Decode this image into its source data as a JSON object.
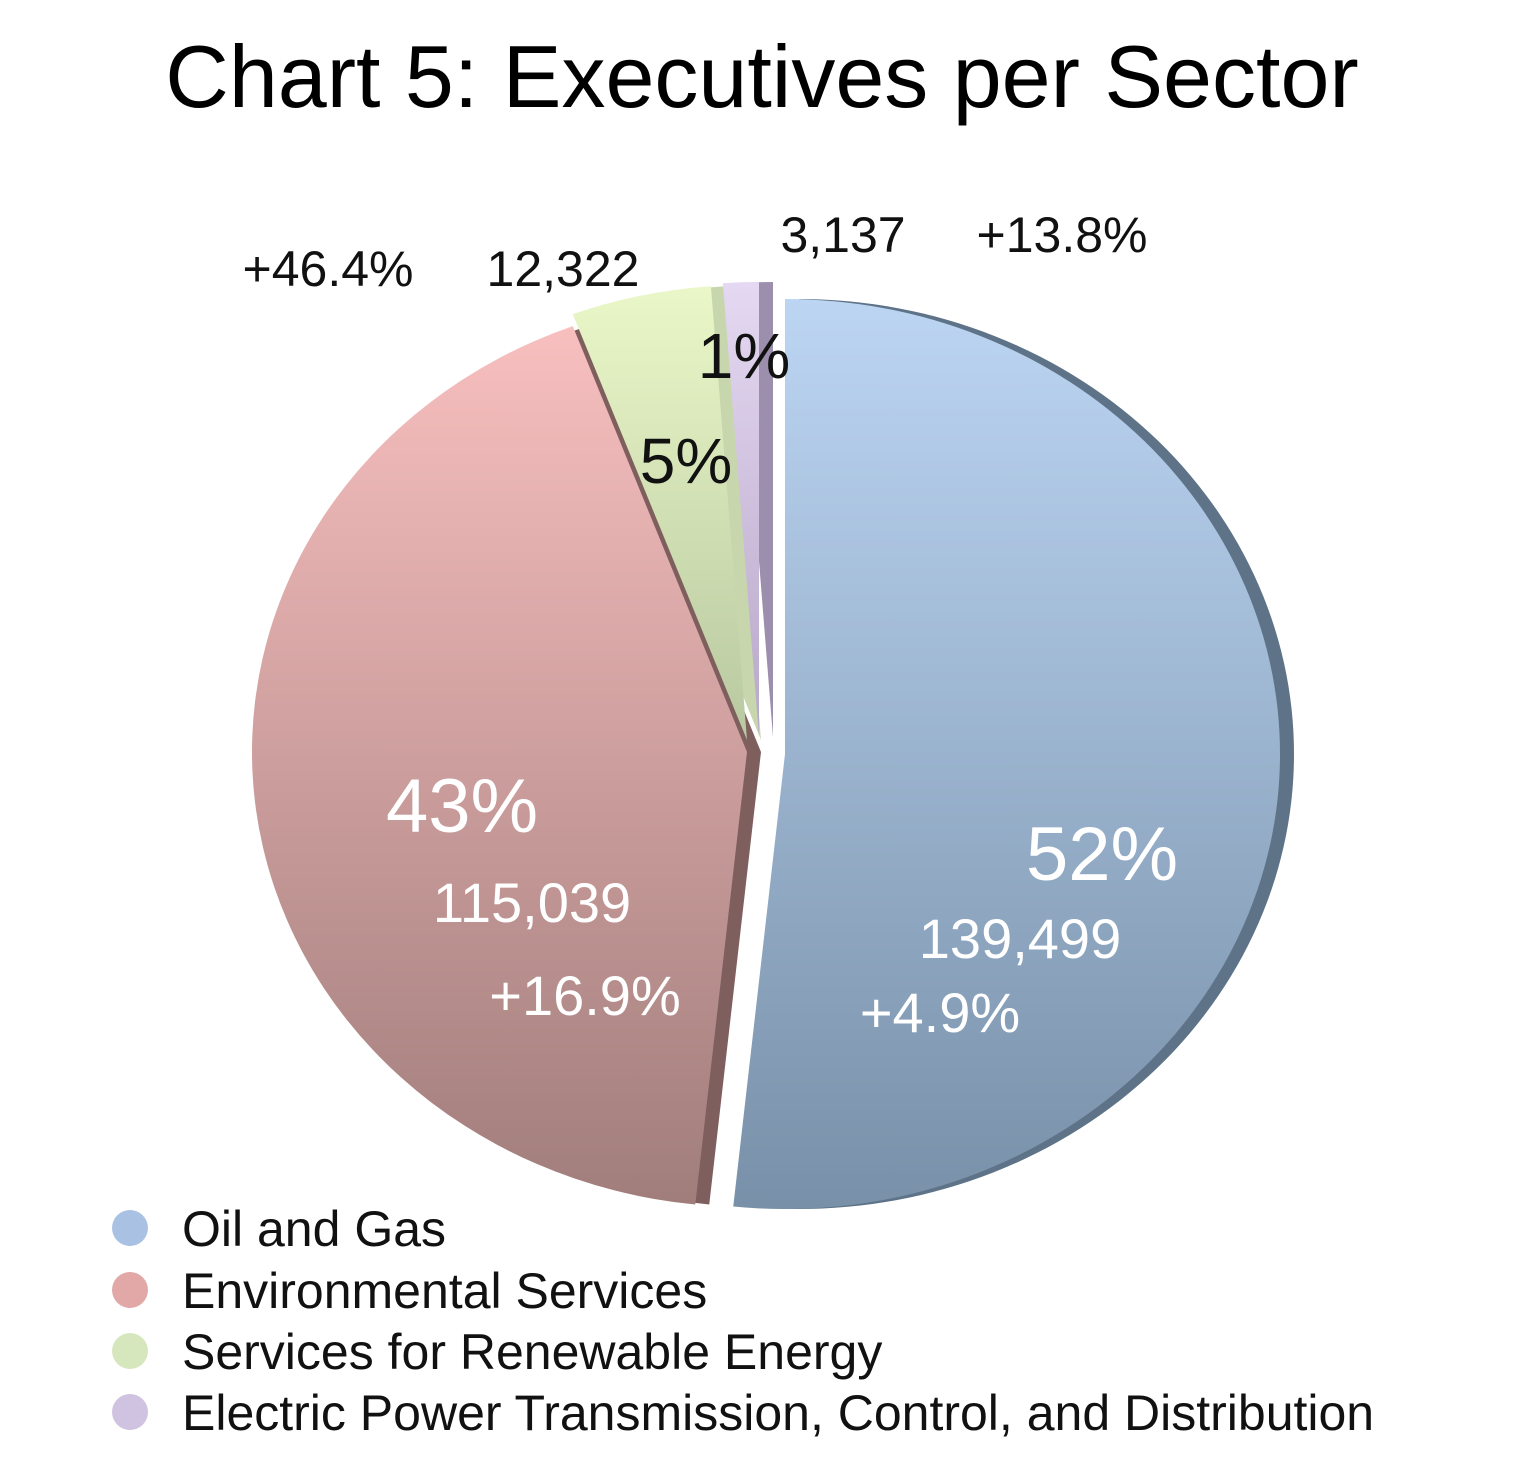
{
  "chart_data": {
    "type": "pie",
    "title": "Chart 5: Executives per Sector",
    "legend_position": "bottom-left",
    "slices": [
      {
        "name": "Oil and Gas",
        "value": 139499,
        "percent_label": "52%",
        "value_label": "139,499",
        "change_label": "+4.9%",
        "color": "#9bb3d6"
      },
      {
        "name": "Environmental Services",
        "value": 115039,
        "percent_label": "43%",
        "value_label": "115,039",
        "change_label": "+16.9%",
        "color": "#d9a3a3"
      },
      {
        "name": "Services for Renewable Energy",
        "value": 12322,
        "percent_label": "5%",
        "value_label": "12,322",
        "change_label": "+46.4%",
        "color": "#dcebc0"
      },
      {
        "name": "Electric Power Transmission, Control, and Distribution",
        "value": 3137,
        "percent_label": "1%",
        "value_label": "3,137",
        "change_label": "+13.8%",
        "color": "#cfc2e0"
      }
    ]
  }
}
